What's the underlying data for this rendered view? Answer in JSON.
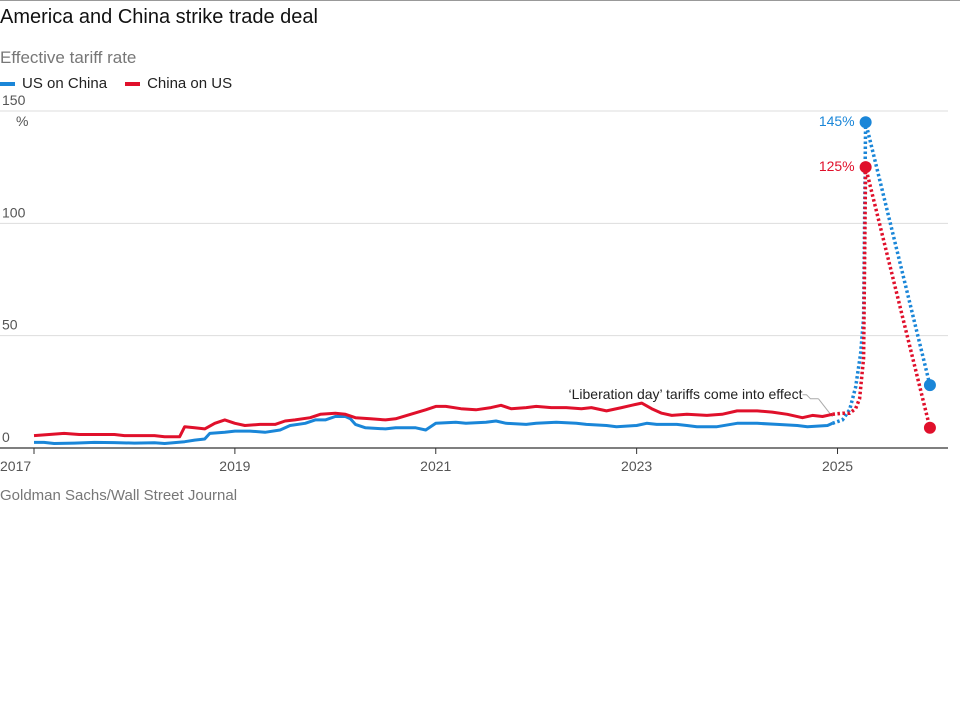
{
  "title": "America and China strike trade deal",
  "subtitle": "Effective tariff rate",
  "source": "Goldman Sachs/Wall Street Journal",
  "colors": {
    "us_on_china": "#1a86d8",
    "china_on_us": "#e0102b",
    "grid": "#dddddd",
    "axis": "#333333"
  },
  "chart_data": {
    "type": "line",
    "title": "America and China strike trade deal",
    "subtitle": "Effective tariff rate",
    "ylabel": "",
    "y_unit": "%",
    "xlim": [
      2017.0,
      2026.1
    ],
    "ylim": [
      0,
      150
    ],
    "yticks": [
      0,
      50,
      100,
      150
    ],
    "xticks": [
      2017,
      2019,
      2021,
      2023,
      2025
    ],
    "grid": true,
    "legend_position": "top-left",
    "series": [
      {
        "name": "US on China",
        "color": "#1a86d8",
        "solid": [
          [
            2017.0,
            2.5
          ],
          [
            2017.1,
            2.5
          ],
          [
            2017.2,
            2.0
          ],
          [
            2017.4,
            2.2
          ],
          [
            2017.6,
            2.5
          ],
          [
            2017.8,
            2.4
          ],
          [
            2018.0,
            2.2
          ],
          [
            2018.2,
            2.3
          ],
          [
            2018.3,
            2.0
          ],
          [
            2018.5,
            2.8
          ],
          [
            2018.6,
            3.5
          ],
          [
            2018.7,
            4.0
          ],
          [
            2018.75,
            6.5
          ],
          [
            2018.9,
            7.0
          ],
          [
            2019.0,
            7.5
          ],
          [
            2019.15,
            7.5
          ],
          [
            2019.3,
            7.0
          ],
          [
            2019.45,
            8.0
          ],
          [
            2019.55,
            10.0
          ],
          [
            2019.7,
            11.0
          ],
          [
            2019.8,
            12.5
          ],
          [
            2019.9,
            12.5
          ],
          [
            2020.0,
            14.0
          ],
          [
            2020.1,
            14.0
          ],
          [
            2020.15,
            13.0
          ],
          [
            2020.2,
            10.5
          ],
          [
            2020.3,
            9.0
          ],
          [
            2020.5,
            8.5
          ],
          [
            2020.6,
            9.0
          ],
          [
            2020.8,
            9.0
          ],
          [
            2020.9,
            8.0
          ],
          [
            2021.0,
            11.0
          ],
          [
            2021.2,
            11.5
          ],
          [
            2021.3,
            11.0
          ],
          [
            2021.5,
            11.5
          ],
          [
            2021.6,
            12.0
          ],
          [
            2021.7,
            11.0
          ],
          [
            2021.9,
            10.5
          ],
          [
            2022.0,
            11.0
          ],
          [
            2022.2,
            11.5
          ],
          [
            2022.4,
            11.0
          ],
          [
            2022.5,
            10.5
          ],
          [
            2022.7,
            10.0
          ],
          [
            2022.8,
            9.5
          ],
          [
            2023.0,
            10.0
          ],
          [
            2023.1,
            11.0
          ],
          [
            2023.2,
            10.5
          ],
          [
            2023.4,
            10.5
          ],
          [
            2023.5,
            10.0
          ],
          [
            2023.6,
            9.5
          ],
          [
            2023.8,
            9.5
          ],
          [
            2024.0,
            11.0
          ],
          [
            2024.2,
            11.0
          ],
          [
            2024.4,
            10.5
          ],
          [
            2024.6,
            10.0
          ],
          [
            2024.7,
            9.5
          ],
          [
            2024.9,
            10.0
          ],
          [
            2024.95,
            11.0
          ]
        ],
        "dotted": [
          [
            2024.95,
            11.0
          ],
          [
            2025.05,
            12.5
          ],
          [
            2025.12,
            17.0
          ],
          [
            2025.18,
            27.0
          ],
          [
            2025.23,
            42.0
          ],
          [
            2025.26,
            58.0
          ],
          [
            2025.28,
            145
          ],
          [
            2025.92,
            28
          ]
        ],
        "markers": [
          [
            2025.28,
            145
          ],
          [
            2025.92,
            28
          ]
        ],
        "peak_label": "145%"
      },
      {
        "name": "China on US",
        "color": "#e0102b",
        "solid": [
          [
            2017.0,
            5.5
          ],
          [
            2017.15,
            6.0
          ],
          [
            2017.3,
            6.5
          ],
          [
            2017.45,
            6.0
          ],
          [
            2017.6,
            6.0
          ],
          [
            2017.8,
            6.0
          ],
          [
            2017.9,
            5.5
          ],
          [
            2018.0,
            5.5
          ],
          [
            2018.2,
            5.5
          ],
          [
            2018.3,
            5.0
          ],
          [
            2018.45,
            5.0
          ],
          [
            2018.5,
            9.5
          ],
          [
            2018.6,
            9.0
          ],
          [
            2018.7,
            8.5
          ],
          [
            2018.8,
            11.0
          ],
          [
            2018.9,
            12.5
          ],
          [
            2019.0,
            11.0
          ],
          [
            2019.1,
            10.0
          ],
          [
            2019.25,
            10.5
          ],
          [
            2019.4,
            10.5
          ],
          [
            2019.5,
            12.0
          ],
          [
            2019.6,
            12.5
          ],
          [
            2019.75,
            13.5
          ],
          [
            2019.85,
            15.0
          ],
          [
            2020.0,
            15.5
          ],
          [
            2020.1,
            15.0
          ],
          [
            2020.2,
            13.5
          ],
          [
            2020.35,
            13.0
          ],
          [
            2020.5,
            12.5
          ],
          [
            2020.6,
            13.0
          ],
          [
            2020.75,
            15.0
          ],
          [
            2020.9,
            17.0
          ],
          [
            2021.0,
            18.5
          ],
          [
            2021.1,
            18.5
          ],
          [
            2021.25,
            17.5
          ],
          [
            2021.4,
            17.0
          ],
          [
            2021.55,
            18.0
          ],
          [
            2021.65,
            19.0
          ],
          [
            2021.75,
            17.5
          ],
          [
            2021.9,
            18.0
          ],
          [
            2022.0,
            18.5
          ],
          [
            2022.15,
            18.0
          ],
          [
            2022.3,
            18.0
          ],
          [
            2022.45,
            17.5
          ],
          [
            2022.55,
            18.0
          ],
          [
            2022.7,
            16.5
          ],
          [
            2022.85,
            18.0
          ],
          [
            2022.95,
            19.0
          ],
          [
            2023.05,
            20.0
          ],
          [
            2023.15,
            17.5
          ],
          [
            2023.25,
            15.5
          ],
          [
            2023.35,
            14.5
          ],
          [
            2023.5,
            15.0
          ],
          [
            2023.7,
            14.5
          ],
          [
            2023.85,
            15.0
          ],
          [
            2024.0,
            16.5
          ],
          [
            2024.2,
            16.5
          ],
          [
            2024.35,
            16.0
          ],
          [
            2024.5,
            15.0
          ],
          [
            2024.65,
            13.5
          ],
          [
            2024.75,
            14.5
          ],
          [
            2024.85,
            14.0
          ],
          [
            2024.95,
            15.0
          ]
        ],
        "dotted": [
          [
            2024.95,
            15.0
          ],
          [
            2025.05,
            15.5
          ],
          [
            2025.12,
            15.5
          ],
          [
            2025.18,
            17.5
          ],
          [
            2025.22,
            22.0
          ],
          [
            2025.26,
            40.0
          ],
          [
            2025.28,
            125
          ],
          [
            2025.92,
            9
          ]
        ],
        "markers": [
          [
            2025.28,
            125
          ],
          [
            2025.92,
            9
          ]
        ],
        "peak_label": "125%"
      }
    ],
    "annotations": [
      {
        "text": "‘Liberation day’ tariffs come into effect",
        "x": 2024.95,
        "y": 13
      }
    ]
  }
}
